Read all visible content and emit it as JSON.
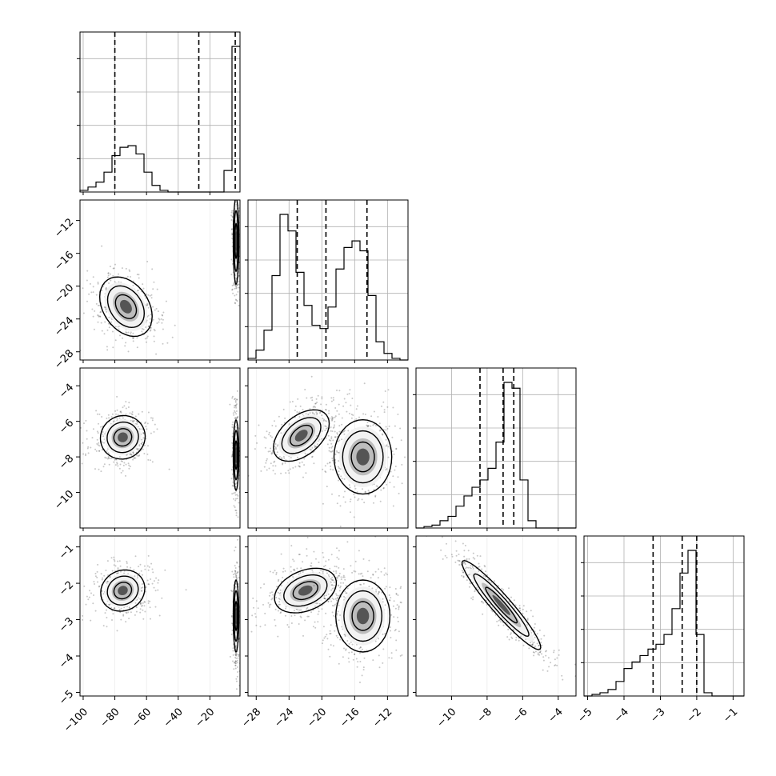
{
  "chart_data": {
    "type": "corner",
    "params": [
      {
        "range": [
          -102,
          -1
        ],
        "ticks": [
          -100,
          -80,
          -60,
          -40,
          -20
        ],
        "tick_labels": [
          "−100",
          "−80",
          "−60",
          "−40",
          "−20"
        ],
        "quantiles": [
          -80,
          -27,
          -4
        ],
        "hist": {
          "start": -102,
          "width": 5.05,
          "counts": [
            0.01,
            0.03,
            0.06,
            0.12,
            0.22,
            0.27,
            0.28,
            0.23,
            0.12,
            0.04,
            0.01,
            0.0,
            0.0,
            0.0,
            0.0,
            0.0,
            0.0,
            0.0,
            0.13,
            0.88
          ]
        }
      },
      {
        "range": [
          -29,
          -9.5
        ],
        "ticks": [
          -28,
          -24,
          -20,
          -16,
          -12
        ],
        "tick_labels": [
          "−28",
          "−24",
          "−20",
          "−16",
          "−12"
        ],
        "quantiles": [
          -23,
          -19.5,
          -14.5
        ],
        "hist": {
          "start": -29,
          "width": 0.975,
          "counts": [
            0.01,
            0.06,
            0.18,
            0.51,
            0.88,
            0.78,
            0.53,
            0.33,
            0.21,
            0.19,
            0.32,
            0.55,
            0.68,
            0.72,
            0.66,
            0.39,
            0.11,
            0.04,
            0.01,
            0.0
          ]
        }
      },
      {
        "range": [
          -12,
          -3
        ],
        "ticks": [
          -10,
          -8,
          -6,
          -4
        ],
        "tick_labels": [
          "−10",
          "−8",
          "−6",
          "−4"
        ],
        "quantiles": [
          -8.4,
          -7.1,
          -6.5
        ],
        "hist": {
          "start": -12,
          "width": 0.45,
          "counts": [
            0.0,
            0.01,
            0.02,
            0.05,
            0.08,
            0.15,
            0.22,
            0.28,
            0.33,
            0.41,
            0.59,
            1.0,
            0.96,
            0.33,
            0.05,
            0.0,
            0.0,
            0.0,
            0.0,
            0.0
          ]
        }
      },
      {
        "range": [
          -5.1,
          -0.7
        ],
        "ticks": [
          -5,
          -4,
          -3,
          -2,
          -1
        ],
        "tick_labels": [
          "−5",
          "−4",
          "−3",
          "−2",
          "−1"
        ],
        "quantiles": [
          -3.2,
          -2.4,
          -2.0
        ],
        "hist": {
          "start": -5.1,
          "width": 0.22,
          "counts": [
            0.0,
            0.01,
            0.02,
            0.04,
            0.09,
            0.17,
            0.21,
            0.25,
            0.29,
            0.32,
            0.38,
            0.54,
            0.76,
            0.9,
            0.38,
            0.02,
            0.0,
            0.0,
            0.0,
            0.0
          ]
        }
      }
    ],
    "blobs_2d": [
      {
        "row": 1,
        "col": 0,
        "blobs": [
          {
            "center": [
              -73,
              -22.5
            ],
            "sd": [
              6.5,
              1.8
            ],
            "rot": -0.6,
            "n": 420,
            "levels": [
              0.4,
              0.7,
              1.0
            ]
          },
          {
            "center": [
              -3.5,
              -14.5
            ],
            "sd": [
              0.8,
              2.4
            ],
            "rot": 0,
            "n": 300,
            "levels": [
              0.4,
              0.7,
              1.0
            ]
          }
        ]
      },
      {
        "row": 2,
        "col": 0,
        "blobs": [
          {
            "center": [
              -75,
              -6.9
            ],
            "sd": [
              6.5,
              0.55
            ],
            "rot": -0.5,
            "n": 420,
            "levels": [
              0.4,
              0.7,
              1.0
            ]
          },
          {
            "center": [
              -3.5,
              -7.9
            ],
            "sd": [
              0.8,
              0.9
            ],
            "rot": 0,
            "n": 300,
            "levels": [
              0.4,
              0.7,
              1.0
            ]
          }
        ]
      },
      {
        "row": 2,
        "col": 1,
        "blobs": [
          {
            "center": [
              -22.5,
              -6.8
            ],
            "sd": [
              1.8,
              0.5
            ],
            "rot": -0.7,
            "n": 420,
            "levels": [
              0.4,
              0.7,
              1.0
            ]
          },
          {
            "center": [
              -15,
              -8.0
            ],
            "sd": [
              1.6,
              0.95
            ],
            "rot": 0,
            "n": 420,
            "levels": [
              0.4,
              0.7,
              1.0
            ]
          }
        ]
      },
      {
        "row": 3,
        "col": 0,
        "blobs": [
          {
            "center": [
              -75,
              -2.2
            ],
            "sd": [
              6.5,
              0.25
            ],
            "rot": -0.5,
            "n": 420,
            "levels": [
              0.4,
              0.7,
              1.0
            ]
          },
          {
            "center": [
              -3.5,
              -2.9
            ],
            "sd": [
              0.8,
              0.45
            ],
            "rot": 0,
            "n": 300,
            "levels": [
              0.4,
              0.7,
              1.0
            ]
          }
        ]
      },
      {
        "row": 3,
        "col": 1,
        "blobs": [
          {
            "center": [
              -22,
              -2.2
            ],
            "sd": [
              1.8,
              0.25
            ],
            "rot": -0.4,
            "n": 420,
            "levels": [
              0.4,
              0.7,
              1.0
            ]
          },
          {
            "center": [
              -15,
              -2.9
            ],
            "sd": [
              1.5,
              0.45
            ],
            "rot": 0,
            "n": 420,
            "levels": [
              0.4,
              0.7,
              1.0
            ]
          }
        ]
      },
      {
        "row": 3,
        "col": 2,
        "blobs": [
          {
            "center": [
              -7.2,
              -2.6
            ],
            "sd": [
              1.5,
              0.12
            ],
            "rot": 0.85,
            "n": 480,
            "levels": [
              0.4,
              0.7,
              1.0
            ]
          }
        ]
      }
    ],
    "grid": true,
    "colors": {
      "line": "#000000",
      "grid": "#b0b0b0",
      "points": "#000000"
    }
  }
}
